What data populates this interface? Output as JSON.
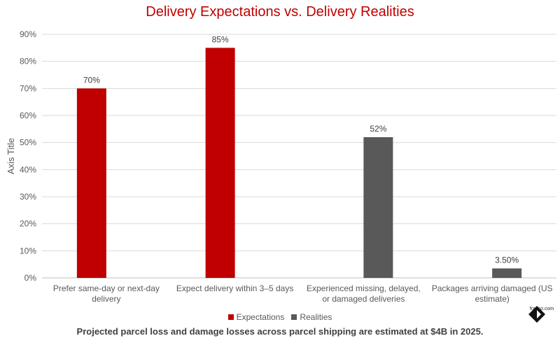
{
  "chart_data": {
    "type": "bar",
    "title": "Delivery Expectations vs. Delivery Realities",
    "categories": [
      [
        "Prefer same-day or next-day",
        "delivery"
      ],
      [
        "Expect delivery within 3–5 days"
      ],
      [
        "Experienced missing, delayed,",
        "or damaged deliveries"
      ],
      [
        "Packages arriving damaged (US",
        "estimate)"
      ]
    ],
    "series": [
      {
        "name": "Expectations",
        "color": "#c00000",
        "values": [
          70,
          85,
          null,
          null
        ],
        "labels": [
          "70%",
          "85%",
          "",
          ""
        ]
      },
      {
        "name": "Realities",
        "color": "#595959",
        "values": [
          null,
          null,
          52,
          3.5
        ],
        "labels": [
          "",
          "",
          "52%",
          "3.50%"
        ]
      }
    ],
    "ylabel": "Axis Title",
    "xlabel": "",
    "ylim": [
      0,
      90
    ],
    "yticks": [
      0,
      10,
      20,
      30,
      40,
      50,
      60,
      70,
      80,
      90
    ],
    "ytick_labels": [
      "0%",
      "10%",
      "20%",
      "30%",
      "40%",
      "50%",
      "60%",
      "70%",
      "80%",
      "90%"
    ],
    "grid": true,
    "legend": "bottom"
  },
  "legend": {
    "expectations": "Expectations",
    "realities": "Realities"
  },
  "footnote": "Projected parcel loss and damage losses across parcel shipping are estimated at $4B in 2025.",
  "brand": {
    "text": "frasco.com"
  }
}
